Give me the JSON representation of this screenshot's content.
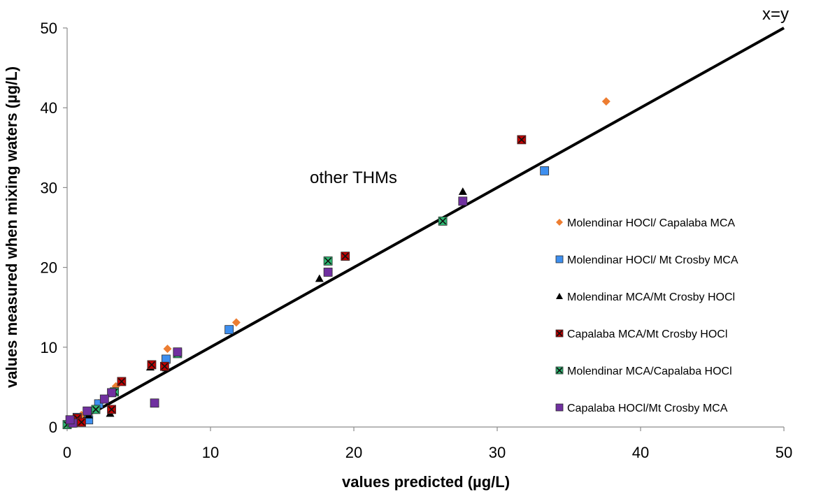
{
  "chart_data": {
    "type": "scatter",
    "title": "",
    "xlabel": "values predicted (µg/L)",
    "ylabel": "values measured when mixing waters (µg/L)",
    "xlim": [
      0,
      50
    ],
    "ylim": [
      0,
      50
    ],
    "xticks": [
      "0",
      "10",
      "20",
      "30",
      "40",
      "50"
    ],
    "yticks": [
      "0",
      "10",
      "20",
      "30",
      "40",
      "50"
    ],
    "grid": false,
    "legend_position": "right",
    "annotations": [
      "other THMs",
      "x=y"
    ],
    "reference_line": {
      "label": "x=y",
      "from": [
        0,
        0
      ],
      "to": [
        50,
        50
      ],
      "color": "#000000"
    },
    "series": [
      {
        "name": "Molendinar HOCl/ Capalaba MCA",
        "marker": "diamond",
        "color": "#ED7D31",
        "points": [
          [
            37.6,
            40.8
          ],
          [
            11.8,
            13.1
          ],
          [
            7.0,
            9.8
          ],
          [
            3.4,
            5.1
          ],
          [
            2.2,
            3.0
          ],
          [
            1.0,
            1.5
          ],
          [
            0.3,
            0.6
          ]
        ]
      },
      {
        "name": "Molendinar HOCl/ Mt Crosby MCA",
        "marker": "square",
        "color": "#3E8FEF",
        "points": [
          [
            33.3,
            32.1
          ],
          [
            11.3,
            12.2
          ],
          [
            6.9,
            8.5
          ],
          [
            2.2,
            2.9
          ],
          [
            1.5,
            0.9
          ],
          [
            0.7,
            1.2
          ],
          [
            0.3,
            0.8
          ]
        ]
      },
      {
        "name": "Molendinar MCA/Mt Crosby HOCl",
        "marker": "triangle",
        "color": "#000000",
        "points": [
          [
            27.6,
            29.5
          ],
          [
            17.6,
            18.6
          ],
          [
            6.9,
            7.4
          ],
          [
            5.8,
            7.5
          ],
          [
            3.0,
            1.7
          ],
          [
            1.5,
            1.5
          ],
          [
            0.6,
            0.7
          ]
        ]
      },
      {
        "name": "Capalaba MCA/Mt Crosby HOCl",
        "marker": "square-x",
        "color": "#C00000",
        "points": [
          [
            31.7,
            36.0
          ],
          [
            19.4,
            21.4
          ],
          [
            6.8,
            7.6
          ],
          [
            5.9,
            7.8
          ],
          [
            3.8,
            5.7
          ],
          [
            3.1,
            2.2
          ],
          [
            0.7,
            1.1
          ],
          [
            1.0,
            0.6
          ]
        ]
      },
      {
        "name": "Molendinar MCA/Capalaba HOCl",
        "marker": "square-x",
        "color": "#2EB872",
        "points": [
          [
            26.2,
            25.8
          ],
          [
            18.2,
            20.8
          ],
          [
            7.7,
            9.2
          ],
          [
            3.3,
            4.4
          ],
          [
            2.0,
            2.2
          ],
          [
            0.0,
            0.3
          ],
          [
            0.3,
            0.5
          ]
        ]
      },
      {
        "name": "Capalaba HOCl/Mt Crosby MCA",
        "marker": "square",
        "color": "#7030A0",
        "points": [
          [
            27.6,
            28.3
          ],
          [
            18.2,
            19.4
          ],
          [
            7.7,
            9.4
          ],
          [
            6.1,
            3.0
          ],
          [
            3.1,
            4.3
          ],
          [
            2.6,
            3.5
          ],
          [
            1.4,
            2.0
          ],
          [
            0.4,
            0.5
          ],
          [
            0.2,
            0.9
          ]
        ]
      }
    ]
  }
}
